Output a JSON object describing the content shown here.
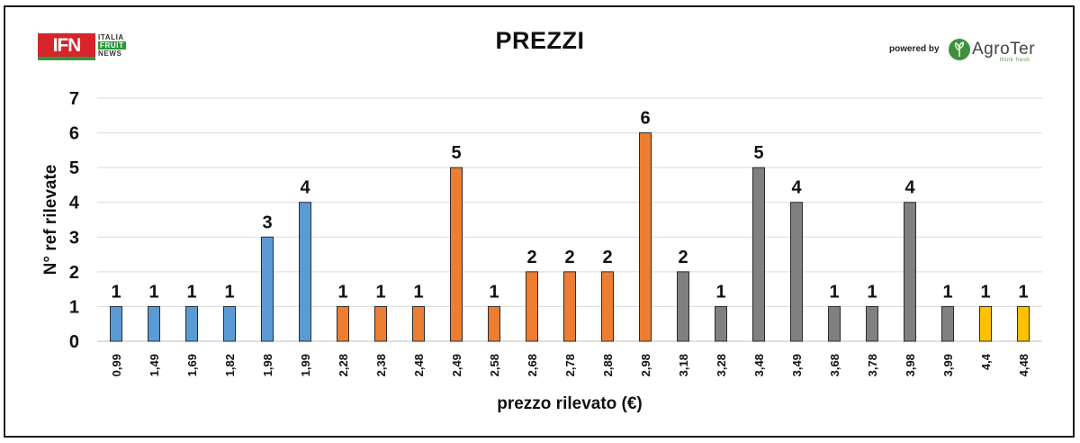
{
  "header": {
    "title": "PREZZI",
    "ifn_logo": {
      "mark": "IFN",
      "line1": "ITALIA",
      "line2": "FRUIT",
      "line3": "NEWS"
    },
    "powered_by": "powered by",
    "agroter_logo": {
      "name": "AgroTer",
      "tagline": "think fresh"
    }
  },
  "chart_data": {
    "type": "bar",
    "title": "PREZZI",
    "xlabel": "prezzo rilevato (€)",
    "ylabel": "N° ref rilevate",
    "ylim": [
      0,
      7
    ],
    "yticks": [
      0,
      1,
      2,
      3,
      4,
      5,
      6,
      7
    ],
    "grid": true,
    "categories": [
      "0,99",
      "1,49",
      "1,69",
      "1,82",
      "1,98",
      "1,99",
      "2,28",
      "2,38",
      "2,48",
      "2,49",
      "2,58",
      "2,68",
      "2,78",
      "2,88",
      "2,98",
      "3,18",
      "3,28",
      "3,48",
      "3,49",
      "3,68",
      "3,78",
      "3,98",
      "3,99",
      "4,4",
      "4,48"
    ],
    "values": [
      1,
      1,
      1,
      1,
      3,
      4,
      1,
      1,
      1,
      5,
      1,
      2,
      2,
      2,
      6,
      2,
      1,
      5,
      4,
      1,
      1,
      4,
      1,
      1,
      1
    ],
    "bar_colors": [
      "#5b9bd5",
      "#5b9bd5",
      "#5b9bd5",
      "#5b9bd5",
      "#5b9bd5",
      "#5b9bd5",
      "#ed7d31",
      "#ed7d31",
      "#ed7d31",
      "#ed7d31",
      "#ed7d31",
      "#ed7d31",
      "#ed7d31",
      "#ed7d31",
      "#ed7d31",
      "#808080",
      "#808080",
      "#808080",
      "#808080",
      "#808080",
      "#808080",
      "#808080",
      "#808080",
      "#ffc000",
      "#ffc000"
    ],
    "bar_edge_color": "#2b2b2b",
    "grid_color": "#d9d9d9"
  }
}
